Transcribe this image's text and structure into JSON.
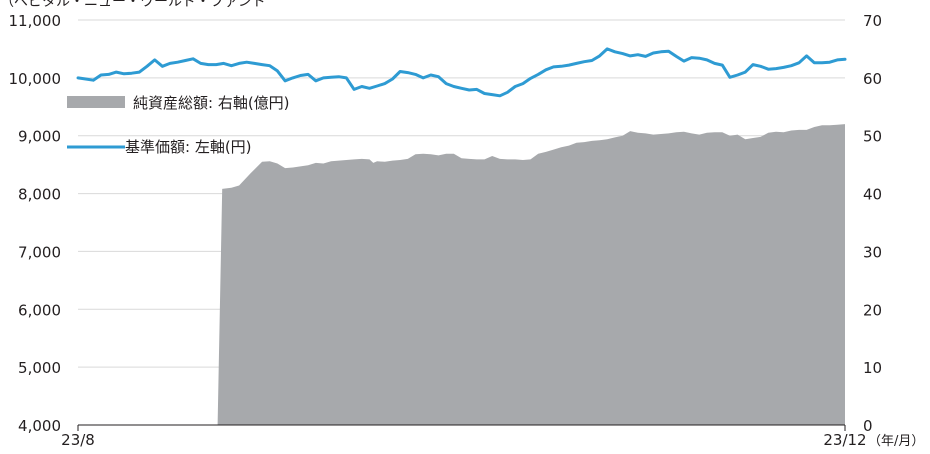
{
  "chart_data": {
    "type": "area",
    "top_label": "（ベビタル・ニュー・ワールド・ファンド",
    "x_tick_labels": [
      "23/8",
      "23/12"
    ],
    "x_unit": "（年/月）",
    "left_axis": {
      "ylim": [
        4000,
        11000
      ],
      "ticks": [
        "4,000",
        "5,000",
        "6,000",
        "7,000",
        "8,000",
        "9,000",
        "10,000",
        "11,000"
      ]
    },
    "right_axis": {
      "ylim": [
        0,
        70
      ],
      "ticks": [
        "0",
        "10",
        "20",
        "30",
        "40",
        "50",
        "60",
        "70"
      ]
    },
    "grid": true,
    "legend_placement": "upper-left",
    "series": [
      {
        "name": "純資産総額: 右軸(億円)",
        "kind": "area",
        "axis": "right",
        "color": "#a7a9ac",
        "points": [
          [
            0,
            0
          ],
          [
            0.182,
            0
          ],
          [
            0.188,
            40.8
          ],
          [
            0.2,
            41
          ],
          [
            0.21,
            41.4
          ],
          [
            0.225,
            43.5
          ],
          [
            0.24,
            45.5
          ],
          [
            0.25,
            45.6
          ],
          [
            0.26,
            45.2
          ],
          [
            0.27,
            44.4
          ],
          [
            0.28,
            44.5
          ],
          [
            0.29,
            44.7
          ],
          [
            0.3,
            44.9
          ],
          [
            0.31,
            45.3
          ],
          [
            0.32,
            45.2
          ],
          [
            0.33,
            45.6
          ],
          [
            0.34,
            45.7
          ],
          [
            0.35,
            45.8
          ],
          [
            0.36,
            45.9
          ],
          [
            0.37,
            46
          ],
          [
            0.38,
            45.9
          ],
          [
            0.385,
            45.3
          ],
          [
            0.39,
            45.6
          ],
          [
            0.4,
            45.5
          ],
          [
            0.41,
            45.7
          ],
          [
            0.42,
            45.8
          ],
          [
            0.43,
            46
          ],
          [
            0.44,
            46.8
          ],
          [
            0.45,
            46.9
          ],
          [
            0.46,
            46.8
          ],
          [
            0.47,
            46.6
          ],
          [
            0.48,
            46.9
          ],
          [
            0.49,
            46.9
          ],
          [
            0.5,
            46.1
          ],
          [
            0.51,
            46
          ],
          [
            0.52,
            45.9
          ],
          [
            0.53,
            45.9
          ],
          [
            0.54,
            46.5
          ],
          [
            0.55,
            46
          ],
          [
            0.56,
            45.9
          ],
          [
            0.57,
            45.9
          ],
          [
            0.58,
            45.8
          ],
          [
            0.59,
            45.9
          ],
          [
            0.6,
            46.9
          ],
          [
            0.61,
            47.2
          ],
          [
            0.62,
            47.6
          ],
          [
            0.63,
            48
          ],
          [
            0.64,
            48.3
          ],
          [
            0.65,
            48.8
          ],
          [
            0.66,
            48.9
          ],
          [
            0.67,
            49.1
          ],
          [
            0.68,
            49.2
          ],
          [
            0.69,
            49.4
          ],
          [
            0.7,
            49.7
          ],
          [
            0.71,
            50
          ],
          [
            0.72,
            50.8
          ],
          [
            0.73,
            50.5
          ],
          [
            0.74,
            50.4
          ],
          [
            0.75,
            50.2
          ],
          [
            0.76,
            50.3
          ],
          [
            0.77,
            50.4
          ],
          [
            0.78,
            50.6
          ],
          [
            0.79,
            50.7
          ],
          [
            0.8,
            50.4
          ],
          [
            0.81,
            50.2
          ],
          [
            0.82,
            50.5
          ],
          [
            0.83,
            50.6
          ],
          [
            0.84,
            50.6
          ],
          [
            0.85,
            50
          ],
          [
            0.86,
            50.2
          ],
          [
            0.87,
            49.4
          ],
          [
            0.88,
            49.6
          ],
          [
            0.89,
            49.8
          ],
          [
            0.9,
            50.5
          ],
          [
            0.91,
            50.7
          ],
          [
            0.92,
            50.6
          ],
          [
            0.93,
            50.9
          ],
          [
            0.94,
            51
          ],
          [
            0.95,
            51
          ],
          [
            0.96,
            51.5
          ],
          [
            0.97,
            51.8
          ],
          [
            0.98,
            51.8
          ],
          [
            0.99,
            51.9
          ],
          [
            1,
            52
          ]
        ]
      },
      {
        "name": "基準価額: 左軸(円)",
        "kind": "line",
        "axis": "left",
        "color": "#2e9bd3",
        "points": [
          [
            0,
            10000
          ],
          [
            0.01,
            9980
          ],
          [
            0.02,
            9960
          ],
          [
            0.03,
            10050
          ],
          [
            0.04,
            10060
          ],
          [
            0.05,
            10100
          ],
          [
            0.06,
            10070
          ],
          [
            0.07,
            10080
          ],
          [
            0.08,
            10100
          ],
          [
            0.09,
            10200
          ],
          [
            0.1,
            10310
          ],
          [
            0.11,
            10200
          ],
          [
            0.12,
            10250
          ],
          [
            0.13,
            10270
          ],
          [
            0.14,
            10300
          ],
          [
            0.15,
            10330
          ],
          [
            0.16,
            10250
          ],
          [
            0.17,
            10230
          ],
          [
            0.18,
            10230
          ],
          [
            0.19,
            10250
          ],
          [
            0.2,
            10210
          ],
          [
            0.21,
            10250
          ],
          [
            0.22,
            10270
          ],
          [
            0.23,
            10250
          ],
          [
            0.24,
            10230
          ],
          [
            0.25,
            10210
          ],
          [
            0.26,
            10120
          ],
          [
            0.27,
            9950
          ],
          [
            0.28,
            10000
          ],
          [
            0.29,
            10040
          ],
          [
            0.3,
            10060
          ],
          [
            0.31,
            9950
          ],
          [
            0.32,
            10000
          ],
          [
            0.33,
            10010
          ],
          [
            0.34,
            10020
          ],
          [
            0.35,
            10000
          ],
          [
            0.36,
            9800
          ],
          [
            0.37,
            9850
          ],
          [
            0.38,
            9820
          ],
          [
            0.39,
            9860
          ],
          [
            0.4,
            9900
          ],
          [
            0.41,
            9980
          ],
          [
            0.42,
            10110
          ],
          [
            0.43,
            10090
          ],
          [
            0.44,
            10060
          ],
          [
            0.45,
            10000
          ],
          [
            0.46,
            10050
          ],
          [
            0.47,
            10020
          ],
          [
            0.48,
            9900
          ],
          [
            0.49,
            9850
          ],
          [
            0.5,
            9820
          ],
          [
            0.51,
            9790
          ],
          [
            0.52,
            9800
          ],
          [
            0.53,
            9730
          ],
          [
            0.54,
            9710
          ],
          [
            0.55,
            9690
          ],
          [
            0.56,
            9750
          ],
          [
            0.57,
            9850
          ],
          [
            0.58,
            9900
          ],
          [
            0.59,
            9990
          ],
          [
            0.6,
            10060
          ],
          [
            0.61,
            10140
          ],
          [
            0.62,
            10190
          ],
          [
            0.63,
            10200
          ],
          [
            0.64,
            10220
          ],
          [
            0.65,
            10250
          ],
          [
            0.66,
            10280
          ],
          [
            0.67,
            10300
          ],
          [
            0.68,
            10380
          ],
          [
            0.69,
            10500
          ],
          [
            0.7,
            10450
          ],
          [
            0.71,
            10420
          ],
          [
            0.72,
            10380
          ],
          [
            0.73,
            10400
          ],
          [
            0.74,
            10370
          ],
          [
            0.75,
            10430
          ],
          [
            0.76,
            10450
          ],
          [
            0.77,
            10460
          ],
          [
            0.78,
            10370
          ],
          [
            0.79,
            10290
          ],
          [
            0.8,
            10350
          ],
          [
            0.81,
            10340
          ],
          [
            0.82,
            10310
          ],
          [
            0.83,
            10250
          ],
          [
            0.84,
            10220
          ],
          [
            0.85,
            10010
          ],
          [
            0.86,
            10050
          ],
          [
            0.87,
            10100
          ],
          [
            0.88,
            10230
          ],
          [
            0.89,
            10200
          ],
          [
            0.9,
            10150
          ],
          [
            0.91,
            10160
          ],
          [
            0.92,
            10180
          ],
          [
            0.93,
            10210
          ],
          [
            0.94,
            10260
          ],
          [
            0.95,
            10380
          ],
          [
            0.96,
            10260
          ],
          [
            0.97,
            10260
          ],
          [
            0.98,
            10270
          ],
          [
            0.99,
            10310
          ],
          [
            1,
            10320
          ]
        ]
      }
    ]
  }
}
